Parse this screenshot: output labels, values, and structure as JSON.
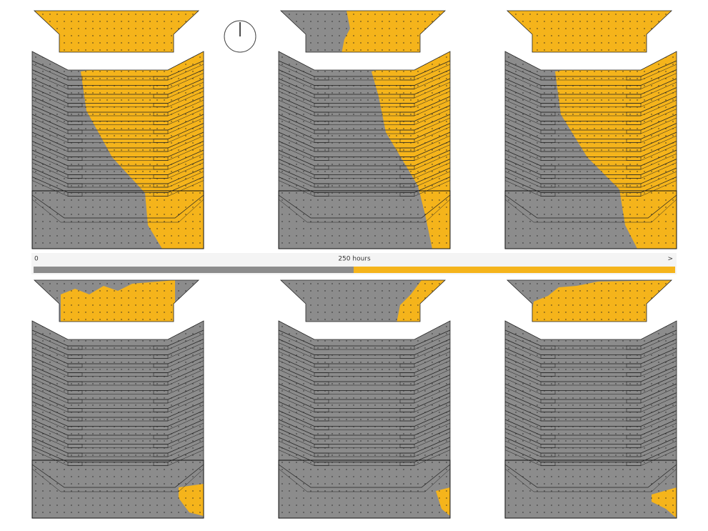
{
  "legend": {
    "min_label": "0",
    "mid_label": "250 hours",
    "more_label": ">"
  }
}
